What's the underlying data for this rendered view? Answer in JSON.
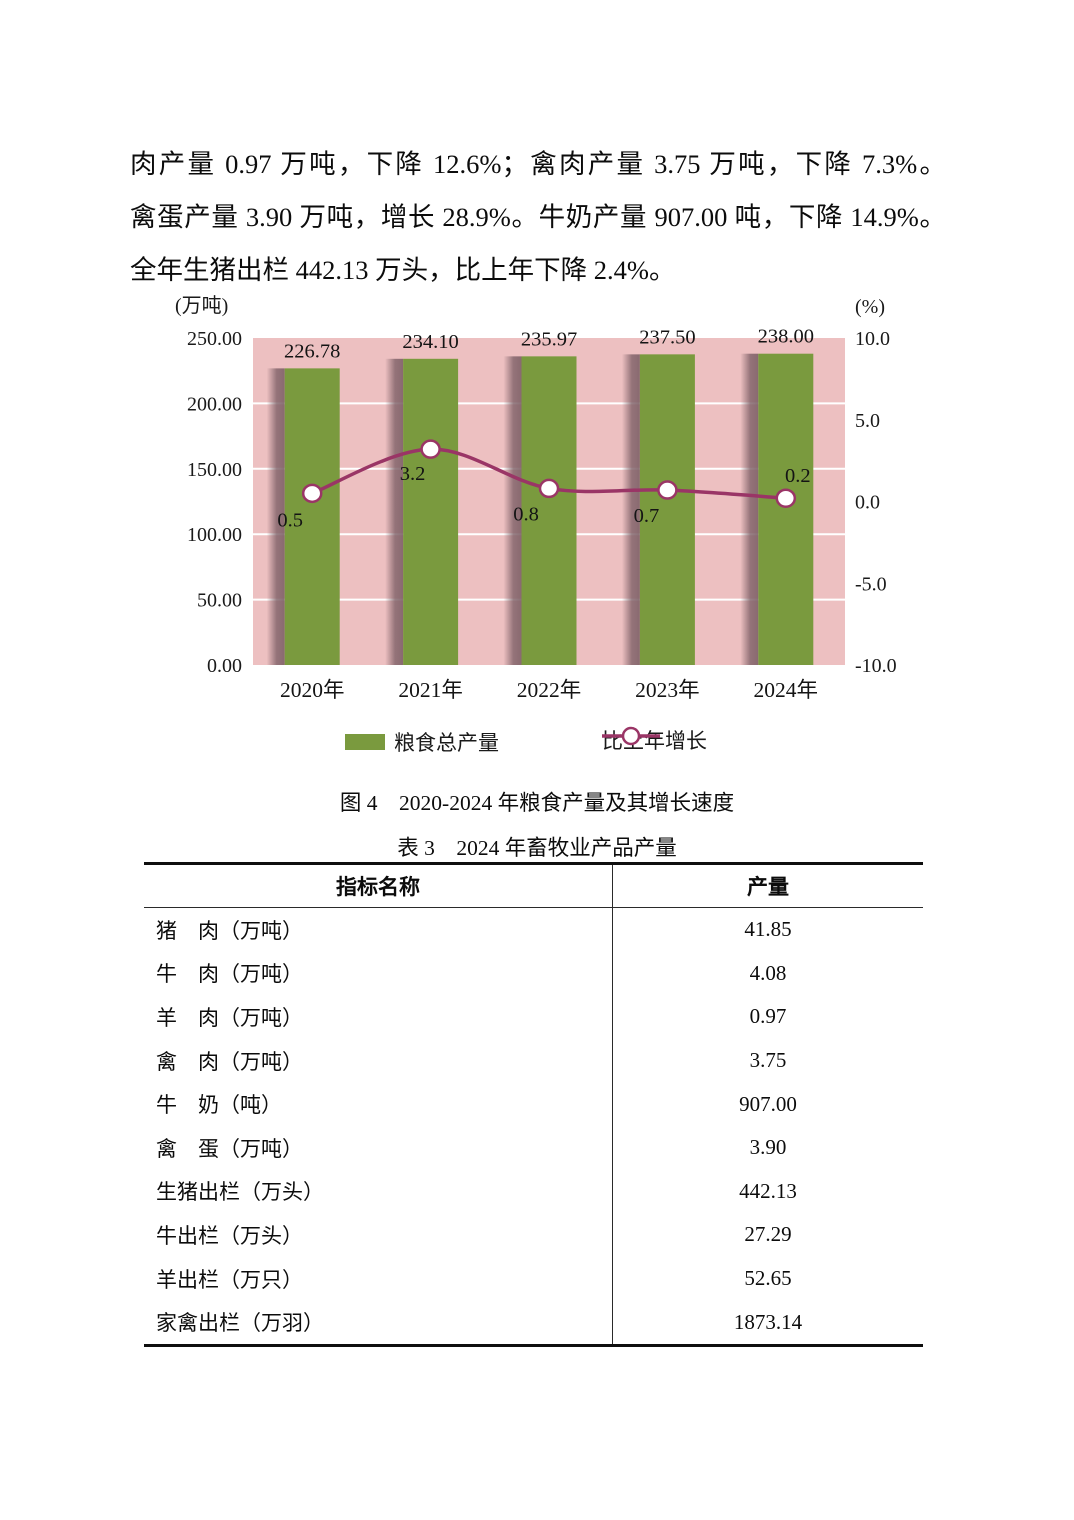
{
  "paragraph": {
    "lines": [
      "肉产量 0.97 万吨，下降 12.6%；禽肉产量 3.75 万吨，下降 7.3%。",
      "禽蛋产量 3.90 万吨，增长 28.9%。牛奶产量 907.00 吨，下降 14.9%。",
      "全年生猪出栏 442.13 万头，比上年下降 2.4%。"
    ]
  },
  "figure_caption": "图 4　2020-2024 年粮食产量及其增长速度",
  "table_caption": "表 3　2024 年畜牧业产品产量",
  "chart_data": {
    "type": "combo-bar-line",
    "categories": [
      "2020年",
      "2021年",
      "2022年",
      "2023年",
      "2024年"
    ],
    "series": [
      {
        "name": "粮食总产量",
        "kind": "bar",
        "axis": "left",
        "values": [
          226.78,
          234.1,
          235.97,
          237.5,
          238.0
        ],
        "labels": [
          "226.78",
          "234.10",
          "235.97",
          "237.50",
          "238.00"
        ],
        "color": "#7a9a3e"
      },
      {
        "name": "比上年增长",
        "kind": "line",
        "axis": "right",
        "values": [
          0.5,
          3.2,
          0.8,
          0.7,
          0.2
        ],
        "labels": [
          "0.5",
          "3.2",
          "0.8",
          "0.7",
          "0.2"
        ],
        "color": "#9a3566",
        "marker": "open-circle"
      }
    ],
    "left_axis": {
      "unit": "(万吨)",
      "min": 0,
      "max": 250,
      "ticks": [
        250,
        200,
        150,
        100,
        50,
        0
      ],
      "tick_labels": [
        "250.00",
        "200.00",
        "150.00",
        "100.00",
        "50.00",
        "0.00"
      ]
    },
    "right_axis": {
      "unit": "(%)",
      "min": -10,
      "max": 10,
      "ticks": [
        10,
        5,
        0,
        -5,
        -10
      ],
      "tick_labels": [
        "10.0",
        "5.0",
        "0.0",
        "-5.0",
        "-10.0"
      ]
    },
    "plot_background": "#edc0c1",
    "gridlines": {
      "color": "#ffffff",
      "values": [
        200,
        150,
        100,
        50
      ]
    },
    "shadow_color": "#7e6067",
    "legend_position": "bottom"
  },
  "table": {
    "headers": [
      "指标名称",
      "产量"
    ],
    "rows": [
      {
        "label": "猪　肉（万吨）",
        "value": "41.85"
      },
      {
        "label": "牛　肉（万吨）",
        "value": "4.08"
      },
      {
        "label": "羊　肉（万吨）",
        "value": "0.97"
      },
      {
        "label": "禽　肉（万吨）",
        "value": "3.75"
      },
      {
        "label": "牛　奶（吨）",
        "value": "907.00"
      },
      {
        "label": "禽　蛋（万吨）",
        "value": "3.90"
      },
      {
        "label": "生猪出栏（万头）",
        "value": "442.13"
      },
      {
        "label": "牛出栏（万头）",
        "value": "27.29"
      },
      {
        "label": "羊出栏（万只）",
        "value": "52.65"
      },
      {
        "label": "家禽出栏（万羽）",
        "value": "1873.14"
      }
    ]
  }
}
